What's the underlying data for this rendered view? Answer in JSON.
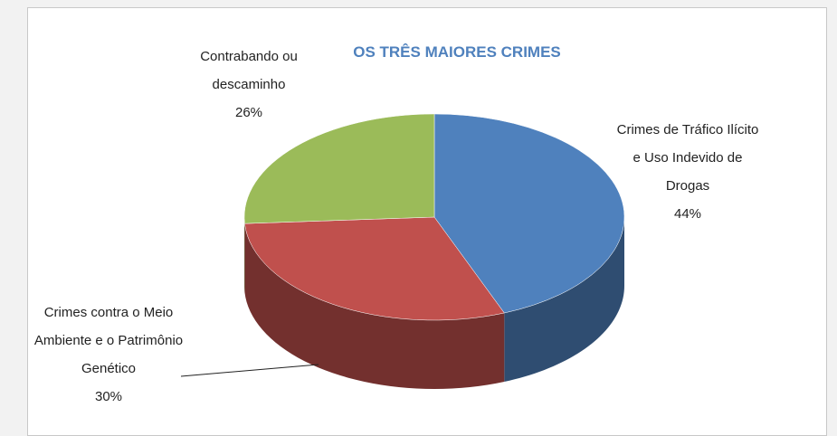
{
  "chart_data": {
    "type": "pie",
    "title": "OS TRÊS MAIORES CRIMES",
    "categories": [
      "Crimes de Tráfico Ilícito e Uso Indevido de Drogas",
      "Crimes contra o Meio Ambiente e o Patrimônio Genético",
      "Contrabando ou descaminho"
    ],
    "values": [
      44,
      30,
      26
    ],
    "value_labels": [
      "44%",
      "30%",
      "26%"
    ],
    "colors": [
      "#4f81bd",
      "#c0504d",
      "#9bbb59"
    ]
  }
}
